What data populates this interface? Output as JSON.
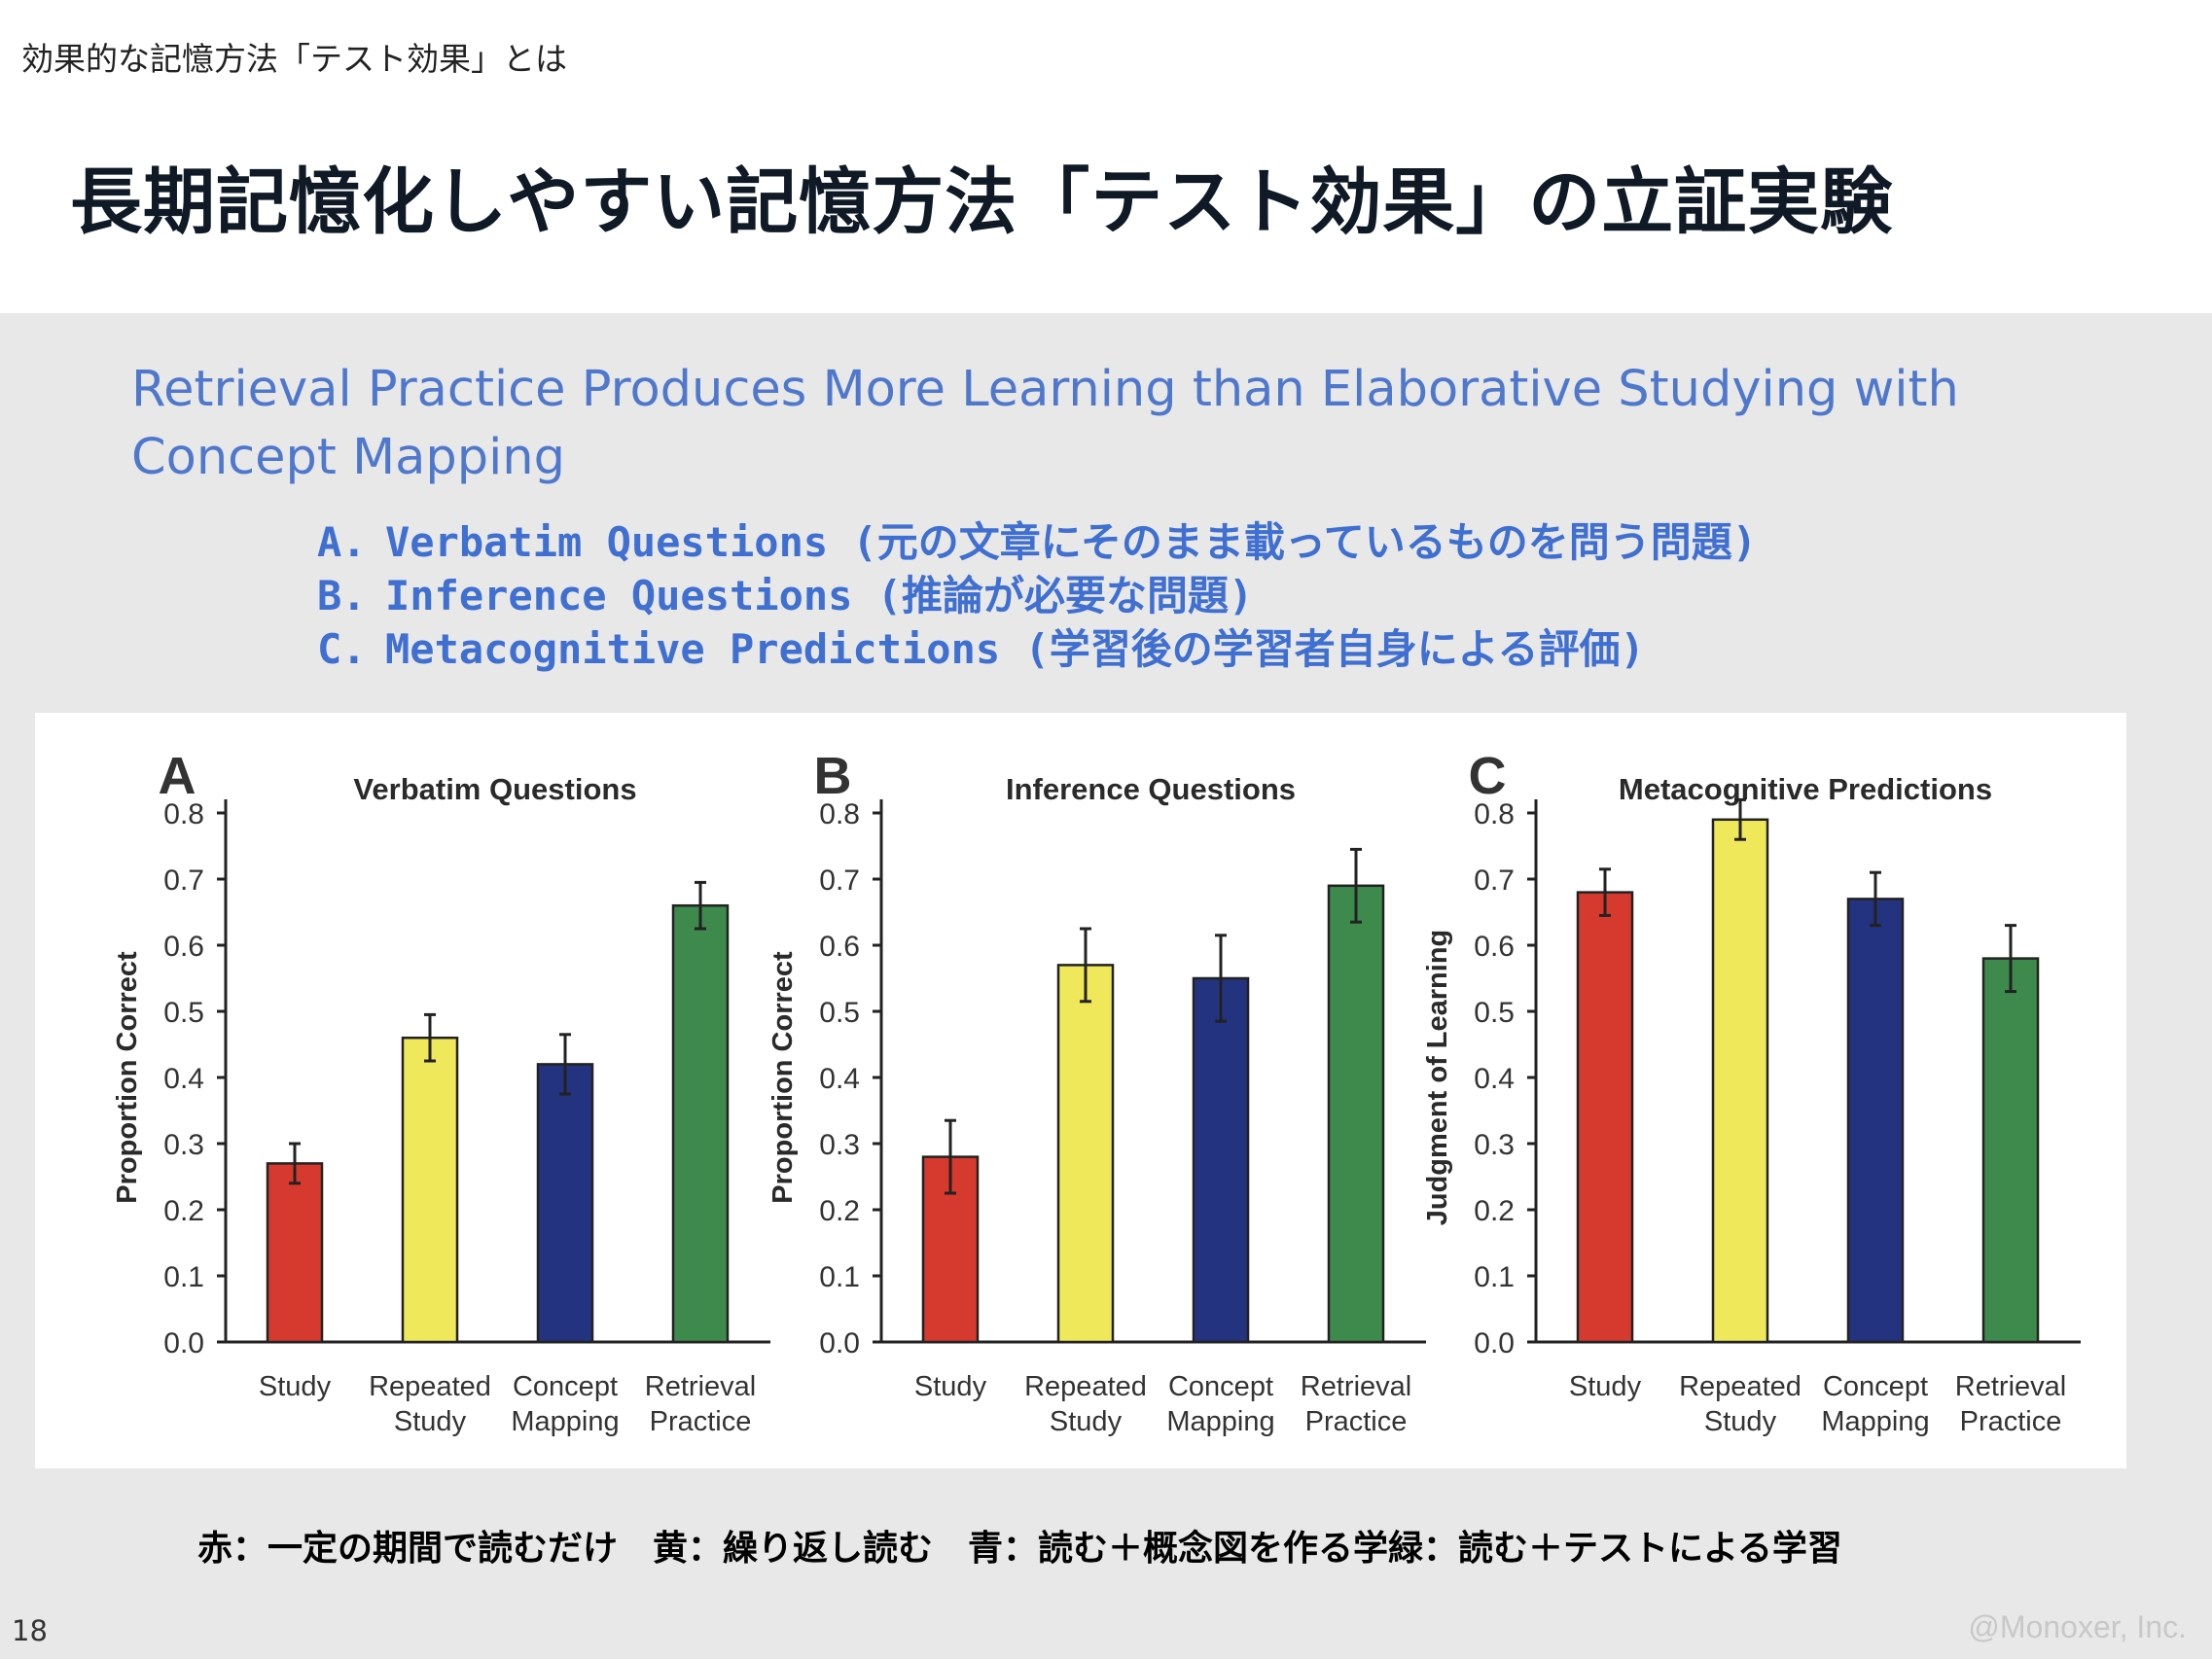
{
  "header": {
    "breadcrumb": "効果的な記憶方法「テスト効果」とは",
    "title": "長期記憶化しやすい記憶方法「テスト効果」の立証実験"
  },
  "subtitle": "Retrieval Practice Produces More Learning than Elaborative Studying with Concept Mapping",
  "legend_items": [
    {
      "letter": "A.",
      "text": "Verbatim Questions (元の文章にそのまま載っているものを問う問題)"
    },
    {
      "letter": "B.",
      "text": "Inference Questions (推論が必要な問題)"
    },
    {
      "letter": "C.",
      "text": "Metacognitive Predictions (学習後の学習者自身による評価)"
    }
  ],
  "colors": {
    "study": "#d63a2f",
    "repeated_study": "#efe85a",
    "concept_mapping": "#24337f",
    "retrieval_practice": "#3e8a4d",
    "subtitle": "#4f78cd",
    "legend": "#3f6fd0"
  },
  "chart_data": [
    {
      "type": "bar",
      "letter": "A",
      "title": "Verbatim Questions",
      "ylabel": "Proportion Correct",
      "categories": [
        "Study",
        "Repeated Study",
        "Concept Mapping",
        "Retrieval Practice"
      ],
      "category_lines": [
        [
          "Study"
        ],
        [
          "Repeated",
          "Study"
        ],
        [
          "Concept",
          "Mapping"
        ],
        [
          "Retrieval",
          "Practice"
        ]
      ],
      "values": [
        0.27,
        0.46,
        0.42,
        0.66
      ],
      "errors": [
        0.03,
        0.035,
        0.045,
        0.035
      ],
      "ylim": [
        0,
        0.8
      ],
      "yticks": [
        "0.0",
        "0.1",
        "0.2",
        "0.3",
        "0.4",
        "0.5",
        "0.6",
        "0.7",
        "0.8"
      ]
    },
    {
      "type": "bar",
      "letter": "B",
      "title": "Inference Questions",
      "ylabel": "Proportion Correct",
      "categories": [
        "Study",
        "Repeated Study",
        "Concept Mapping",
        "Retrieval Practice"
      ],
      "category_lines": [
        [
          "Study"
        ],
        [
          "Repeated",
          "Study"
        ],
        [
          "Concept",
          "Mapping"
        ],
        [
          "Retrieval",
          "Practice"
        ]
      ],
      "values": [
        0.28,
        0.57,
        0.55,
        0.69
      ],
      "errors": [
        0.055,
        0.055,
        0.065,
        0.055
      ],
      "ylim": [
        0,
        0.8
      ],
      "yticks": [
        "0.0",
        "0.1",
        "0.2",
        "0.3",
        "0.4",
        "0.5",
        "0.6",
        "0.7",
        "0.8"
      ]
    },
    {
      "type": "bar",
      "letter": "C",
      "title": "Metacognitive Predictions",
      "ylabel": "Judgment of Learning",
      "categories": [
        "Study",
        "Repeated Study",
        "Concept Mapping",
        "Retrieval Practice"
      ],
      "category_lines": [
        [
          "Study"
        ],
        [
          "Repeated",
          "Study"
        ],
        [
          "Concept",
          "Mapping"
        ],
        [
          "Retrieval",
          "Practice"
        ]
      ],
      "values": [
        0.68,
        0.79,
        0.67,
        0.58
      ],
      "errors": [
        0.035,
        0.03,
        0.04,
        0.05
      ],
      "ylim": [
        0,
        0.8
      ],
      "yticks": [
        "0.0",
        "0.1",
        "0.2",
        "0.3",
        "0.4",
        "0.5",
        "0.6",
        "0.7",
        "0.8"
      ]
    }
  ],
  "color_note": "赤：一定の期間で読むだけ　黄：繰り返し読む　青：読む＋概念図を作る学緑：読む＋テストによる学習",
  "footer": {
    "page_number": "18",
    "copyright": "@Monoxer, Inc."
  }
}
